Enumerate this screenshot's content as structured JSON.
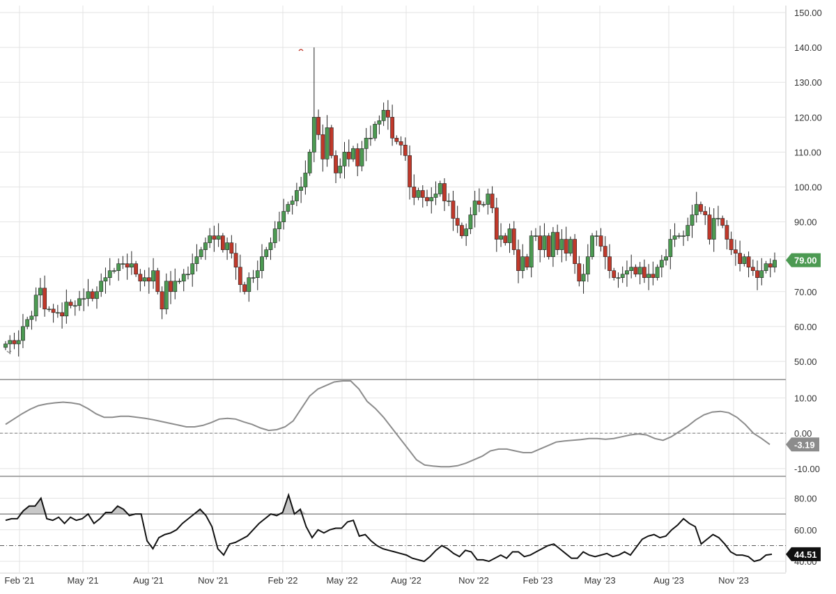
{
  "chart_data": [
    {
      "type": "candlestick",
      "x_tick_labels": [
        "Feb '21",
        "May '21",
        "Aug '21",
        "Nov '21",
        "Feb '22",
        "May '22",
        "Aug '22",
        "Nov '22",
        "Feb '23",
        "May '23",
        "Aug '23",
        "Nov '23"
      ],
      "ylim": [
        45,
        152
      ],
      "y_ticks": [
        50,
        60,
        70,
        80,
        90,
        100,
        110,
        120,
        130,
        140,
        150
      ],
      "y_tick_labels": [
        "50.00",
        "60.00",
        "70.00",
        "80.00",
        "90.00",
        "100.00",
        "110.00",
        "120.00",
        "130.00",
        "140.00",
        "150.00"
      ],
      "last_value_label": "79.00",
      "grid": true,
      "colors": {
        "up": "#4c9a52",
        "down": "#c0392b",
        "badge": "#4c9a52"
      },
      "closes": [
        55,
        56,
        55,
        56,
        60,
        62,
        63,
        69,
        71,
        65,
        65,
        64,
        64,
        63,
        67,
        66,
        66,
        68,
        68,
        70,
        68,
        70,
        73,
        74,
        76,
        76,
        78,
        78,
        77,
        78,
        75,
        73,
        74,
        73,
        76,
        70,
        65,
        73,
        70,
        73,
        73,
        75,
        75,
        78,
        80,
        82,
        84,
        86,
        85,
        86,
        82,
        84,
        81,
        77,
        72,
        70,
        74,
        74,
        76,
        80,
        82,
        84,
        88,
        90,
        93,
        95,
        96,
        99,
        100,
        104,
        110,
        120,
        115,
        108,
        117,
        109,
        104,
        106,
        110,
        108,
        111,
        106,
        111,
        114,
        114,
        118,
        119,
        122,
        120,
        114,
        113,
        112,
        109,
        100,
        97,
        99,
        97,
        96,
        97,
        98,
        101,
        96,
        96,
        91,
        89,
        86,
        88,
        92,
        96,
        95,
        95,
        98,
        94,
        85,
        86,
        84,
        88,
        82,
        76,
        80,
        77,
        86,
        86,
        82,
        86,
        80,
        87,
        82,
        85,
        81,
        85,
        78,
        73,
        75,
        80,
        86,
        86,
        83,
        80,
        76,
        74,
        74,
        75,
        76,
        77,
        75,
        77,
        74,
        75,
        74,
        77,
        79,
        80,
        85,
        86,
        86,
        86,
        89,
        92,
        95,
        93,
        92,
        85,
        91,
        91,
        89,
        85,
        82,
        81,
        78,
        80,
        77,
        76,
        74,
        76,
        78,
        77,
        79
      ],
      "annotations": [
        "140 high marker",
        "54 low marker"
      ],
      "series": [
        {
          "name": "",
          "values": []
        }
      ]
    },
    {
      "type": "line",
      "ylim": [
        -12,
        15
      ],
      "y_ticks": [
        10,
        0,
        -10
      ],
      "y_tick_labels": [
        "10.00",
        "0.00",
        "-10.00"
      ],
      "reference_line": 0,
      "last_value_label": "-3.19",
      "colors": {
        "line": "#8c8c8c",
        "badge": "#8c8c8c"
      },
      "values": [
        2.5,
        4,
        5.5,
        6.8,
        7.8,
        8.3,
        8.6,
        8.8,
        8.6,
        8.2,
        7,
        5.5,
        4.5,
        4.5,
        4.8,
        4.8,
        4.5,
        4.2,
        3.8,
        3.3,
        2.8,
        2.3,
        1.8,
        1.8,
        2.2,
        3,
        4,
        4.2,
        4,
        3.2,
        2.5,
        1.5,
        0.8,
        1,
        1.8,
        3.5,
        7,
        10.5,
        12.5,
        13.5,
        14.5,
        14.8,
        14.8,
        12.5,
        9,
        7,
        4.5,
        1.5,
        -1.5,
        -4.5,
        -7.5,
        -9,
        -9.3,
        -9.5,
        -9.5,
        -9.2,
        -8.5,
        -7.5,
        -6.5,
        -5,
        -4.5,
        -4.5,
        -5,
        -5.5,
        -5.5,
        -4.5,
        -3.5,
        -2.5,
        -2.2,
        -2,
        -1.8,
        -1.5,
        -1.5,
        -1.7,
        -1.5,
        -1,
        -0.5,
        -0.2,
        -0.5,
        -1.5,
        -2,
        -1,
        0.5,
        2,
        3.8,
        5.2,
        6,
        6.2,
        5.8,
        4.5,
        2.5,
        0,
        -1.5,
        -3.19
      ]
    },
    {
      "type": "line",
      "ylim": [
        33,
        93
      ],
      "y_ticks": [
        80,
        60,
        40
      ],
      "y_tick_labels": [
        "80.00",
        "60.00",
        "40.00"
      ],
      "reference_lines": [
        70,
        50
      ],
      "last_value_label": "44.51",
      "colors": {
        "line": "#111111",
        "fill": "#c8c8c8",
        "badge": "#111111"
      },
      "values": [
        66,
        67,
        67,
        72,
        75,
        75,
        80,
        67,
        66,
        68,
        64,
        68,
        66,
        67,
        70,
        64,
        67,
        71,
        71,
        75,
        73,
        69,
        70,
        70,
        53,
        48,
        55,
        57,
        58,
        60,
        64,
        67,
        70,
        73,
        69,
        62,
        48,
        44,
        51,
        52,
        54,
        56,
        60,
        64,
        67,
        70,
        69,
        71,
        82,
        70,
        73,
        62,
        55,
        60,
        58,
        60,
        61,
        61,
        65,
        66,
        56,
        57,
        53,
        50,
        48,
        47,
        46,
        45,
        44,
        42,
        41,
        40,
        43,
        47,
        50,
        48,
        45,
        43,
        47,
        46,
        41,
        41,
        40,
        42,
        44,
        42,
        46,
        46,
        43,
        44,
        46,
        48,
        50,
        51,
        48,
        45,
        42,
        42,
        46,
        44,
        43,
        44,
        45,
        43,
        44,
        46,
        44,
        49,
        54,
        56,
        57,
        55,
        56,
        60,
        63,
        67,
        64,
        62,
        51,
        54,
        57,
        55,
        51,
        46,
        44,
        44,
        43,
        40,
        41,
        44,
        44.51
      ]
    }
  ]
}
